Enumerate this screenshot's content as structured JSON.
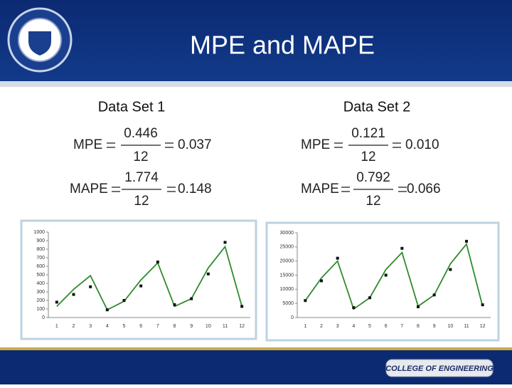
{
  "header": {
    "title": "MPE and MAPE"
  },
  "panels": [
    {
      "label": "Data Set 1",
      "formulas": [
        {
          "lhs": "MPE",
          "numerator": "0.446",
          "denominator": "12",
          "result": "0.037"
        },
        {
          "lhs": "MAPE",
          "numerator": "1.774",
          "denominator": "12",
          "result": "0.148"
        }
      ]
    },
    {
      "label": "Data Set 2",
      "formulas": [
        {
          "lhs": "MPE",
          "numerator": "0.121",
          "denominator": "12",
          "result": "0.010"
        },
        {
          "lhs": "MAPE",
          "numerator": "0.792",
          "denominator": "12",
          "result": "0.066"
        }
      ]
    }
  ],
  "footer": {
    "logo": "COLLEGE OF ENGINEERING"
  },
  "chart_data": [
    {
      "type": "line",
      "categories": [
        "1",
        "2",
        "3",
        "4",
        "5",
        "6",
        "7",
        "8",
        "9",
        "10",
        "11",
        "12"
      ],
      "ylim": [
        0,
        1000
      ],
      "yticks": [
        0,
        100,
        200,
        300,
        400,
        500,
        600,
        700,
        800,
        900,
        1000
      ],
      "series": [
        {
          "style": "line",
          "color": "#2e8b2e",
          "values": [
            130,
            330,
            490,
            90,
            190,
            440,
            640,
            130,
            220,
            580,
            830,
            130
          ]
        },
        {
          "style": "point",
          "color": "#111111",
          "values": [
            180,
            270,
            360,
            90,
            200,
            370,
            650,
            150,
            220,
            510,
            880,
            130
          ]
        }
      ]
    },
    {
      "type": "line",
      "categories": [
        "1",
        "2",
        "3",
        "4",
        "5",
        "6",
        "7",
        "8",
        "9",
        "10",
        "11",
        "12"
      ],
      "ylim": [
        0,
        30000
      ],
      "yticks": [
        0,
        5000,
        10000,
        15000,
        20000,
        25000,
        30000
      ],
      "series": [
        {
          "style": "line",
          "color": "#2e8b2e",
          "values": [
            6000,
            14000,
            20000,
            3000,
            7000,
            17000,
            23000,
            4000,
            8000,
            19000,
            26000,
            4000
          ]
        },
        {
          "style": "point",
          "color": "#111111",
          "values": [
            6000,
            13000,
            21000,
            3500,
            7000,
            15000,
            24500,
            3800,
            8000,
            17000,
            27000,
            4500
          ]
        }
      ]
    }
  ]
}
